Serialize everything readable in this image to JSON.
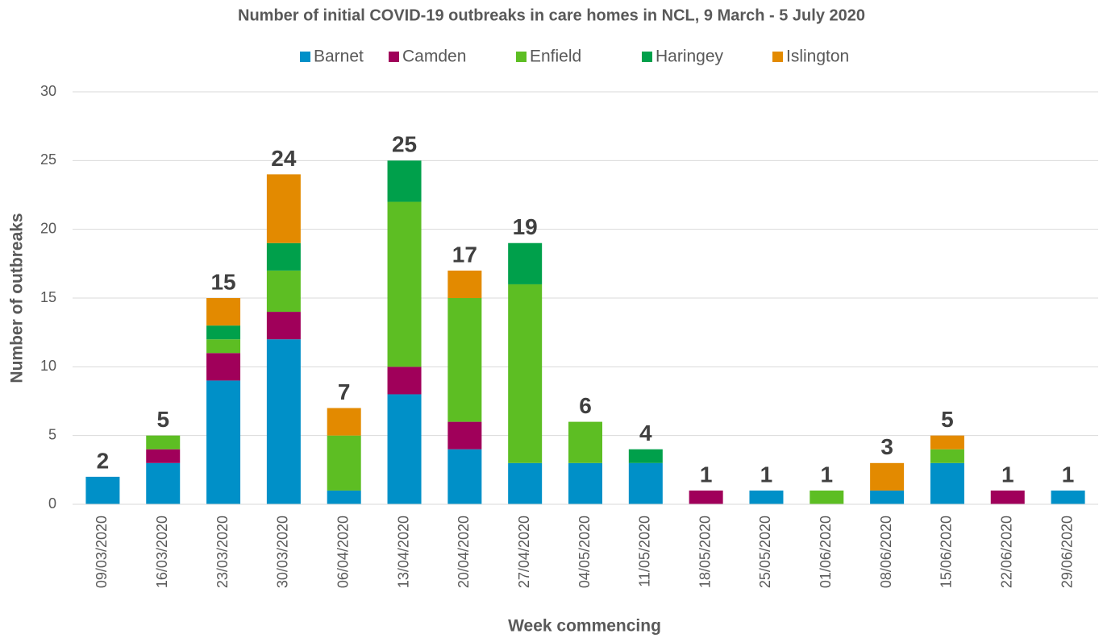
{
  "chart_data": {
    "type": "stacked_bar",
    "title": "Number of initial COVID-19 outbreaks in care homes in NCL, 9 March - 5 July 2020",
    "x_label": "Week commencing",
    "y_label": "Number of outbreaks",
    "categories": [
      "09/03/2020",
      "16/03/2020",
      "23/03/2020",
      "30/03/2020",
      "06/04/2020",
      "13/04/2020",
      "20/04/2020",
      "27/04/2020",
      "04/05/2020",
      "11/05/2020",
      "18/05/2020",
      "25/05/2020",
      "01/06/2020",
      "08/06/2020",
      "15/06/2020",
      "22/06/2020",
      "29/06/2020"
    ],
    "series": [
      {
        "name": "Barnet",
        "color": "#0090c8",
        "values": [
          2,
          3,
          9,
          12,
          1,
          8,
          4,
          3,
          3,
          3,
          0,
          1,
          0,
          1,
          3,
          0,
          1
        ]
      },
      {
        "name": "Camden",
        "color": "#a0005a",
        "values": [
          0,
          1,
          2,
          2,
          0,
          2,
          2,
          0,
          0,
          0,
          1,
          0,
          0,
          0,
          0,
          1,
          0
        ]
      },
      {
        "name": "Enfield",
        "color": "#5dbe23",
        "values": [
          0,
          1,
          1,
          3,
          4,
          12,
          9,
          13,
          3,
          0,
          0,
          0,
          1,
          0,
          1,
          0,
          0
        ]
      },
      {
        "name": "Haringey",
        "color": "#00a04b",
        "values": [
          0,
          0,
          1,
          2,
          0,
          3,
          0,
          3,
          0,
          1,
          0,
          0,
          0,
          0,
          0,
          0,
          0
        ]
      },
      {
        "name": "Islington",
        "color": "#e38a00",
        "values": [
          0,
          0,
          2,
          5,
          2,
          0,
          2,
          0,
          0,
          0,
          0,
          0,
          0,
          2,
          1,
          0,
          0
        ]
      }
    ],
    "totals": [
      2,
      5,
      15,
      24,
      7,
      25,
      17,
      19,
      6,
      4,
      1,
      1,
      1,
      3,
      5,
      1,
      1
    ],
    "ylim": [
      0,
      30
    ],
    "yticks": [
      0,
      5,
      10,
      15,
      20,
      25,
      30
    ],
    "grid": true
  }
}
